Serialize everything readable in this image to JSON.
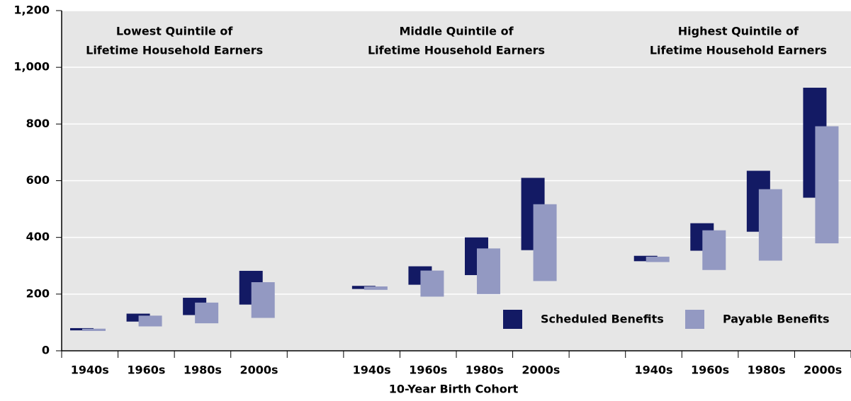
{
  "chart_data": {
    "type": "floating_bar",
    "x_label": "10-Year Birth Cohort",
    "annotations": [
      [
        "Lowest Quintile of",
        "Lifetime Household Earners"
      ],
      [
        "Middle Quintile of",
        "Lifetime Household Earners"
      ],
      [
        "Highest Quintile of",
        "Lifetime Household Earners"
      ]
    ],
    "categories": [
      "1940s",
      "1960s",
      "1980s",
      "2000s",
      null,
      "1940s",
      "1960s",
      "1980s",
      "2000s",
      null,
      "1940s",
      "1960s",
      "1980s",
      "2000s"
    ],
    "series": [
      {
        "name": "Scheduled Benefits",
        "color": "#131a64",
        "low": [
          72,
          103,
          126,
          163,
          null,
          218,
          233,
          267,
          355,
          null,
          316,
          353,
          420,
          540
        ],
        "high": [
          80,
          131,
          187,
          282,
          null,
          229,
          298,
          400,
          610,
          null,
          335,
          450,
          635,
          928
        ]
      },
      {
        "name": "Payable Benefits",
        "color": "#9399c2",
        "low": [
          70,
          86,
          97,
          116,
          null,
          215,
          191,
          200,
          246,
          null,
          313,
          285,
          318,
          379
        ],
        "high": [
          78,
          124,
          170,
          242,
          null,
          227,
          283,
          361,
          517,
          null,
          332,
          425,
          570,
          792
        ]
      }
    ],
    "ylim": [
      0,
      1200
    ],
    "yticks": [
      0,
      200,
      400,
      600,
      800,
      {
        "value": 1000,
        "label": "1,000"
      },
      {
        "value": 1200,
        "label": "1,200"
      }
    ],
    "grid": true,
    "legend": "lower right",
    "background": "#e6e6e6"
  }
}
